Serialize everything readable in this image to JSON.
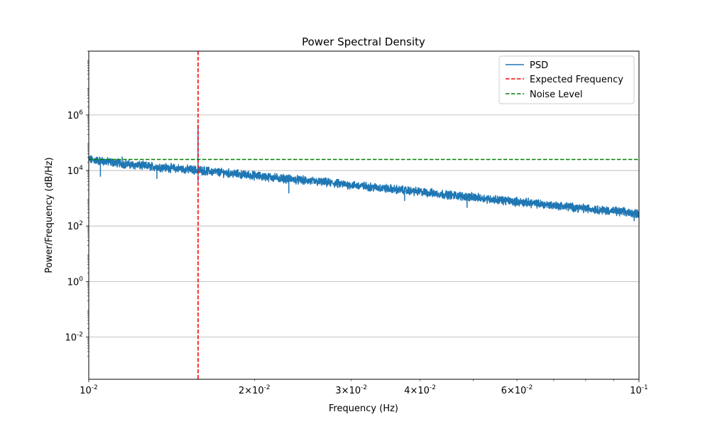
{
  "chart_data": {
    "type": "line",
    "title": "Power Spectral Density",
    "xlabel": "Frequency (Hz)",
    "ylabel": "Power/Frequency (dB/Hz)",
    "xscale": "log",
    "yscale": "log",
    "xlim": [
      0.01,
      0.1
    ],
    "ylim": [
      0.0003,
      200000000
    ],
    "grid": "y-major",
    "legend_position": "top-right",
    "x_major_ticks": [
      {
        "value": 0.01,
        "mantissa": "",
        "exponent": "-2"
      },
      {
        "value": 0.1,
        "mantissa": "",
        "exponent": "-1"
      }
    ],
    "x_minor_ticks": [
      {
        "value": 0.02,
        "mantissa": "2",
        "exponent": "-2"
      },
      {
        "value": 0.03,
        "mantissa": "3",
        "exponent": "-2"
      },
      {
        "value": 0.04,
        "mantissa": "4",
        "exponent": "-2"
      },
      {
        "value": 0.06,
        "mantissa": "6",
        "exponent": "-2"
      }
    ],
    "x_minor_ticks_unlabeled": [
      0.05,
      0.07,
      0.08,
      0.09
    ],
    "y_ticks": [
      {
        "value": 0.01,
        "exponent": "-2"
      },
      {
        "value": 1,
        "exponent": "0"
      },
      {
        "value": 100,
        "exponent": "2"
      },
      {
        "value": 10000,
        "exponent": "4"
      },
      {
        "value": 1000000,
        "exponent": "6"
      }
    ],
    "series": [
      {
        "name": "PSD",
        "color": "#1f77b4",
        "style": "solid",
        "trend": {
          "x": [
            0.01,
            0.012,
            0.016,
            0.02,
            0.03,
            0.04,
            0.06,
            0.08,
            0.1
          ],
          "y": [
            25000,
            16000,
            10000,
            6500,
            3000,
            1700,
            750,
            430,
            280
          ]
        },
        "noise_band_decades": 0.12,
        "dips": [
          {
            "x": 0.0105,
            "y": 6000
          },
          {
            "x": 0.0133,
            "y": 5000
          },
          {
            "x": 0.0158,
            "y": 4000
          },
          {
            "x": 0.0231,
            "y": 1500
          },
          {
            "x": 0.0375,
            "y": 800
          },
          {
            "x": 0.0487,
            "y": 450
          },
          {
            "x": 0.098,
            "y": 150
          }
        ],
        "peaks": [
          {
            "x": 0.0158,
            "y": 450000
          },
          {
            "x": 0.0115,
            "y": 32000
          }
        ]
      },
      {
        "name": "Expected Frequency",
        "color": "#ff0000",
        "style": "dashed",
        "orientation": "vertical",
        "x": 0.0158
      },
      {
        "name": "Noise Level",
        "color": "#008000",
        "style": "dashed",
        "orientation": "horizontal",
        "y": 25000
      }
    ]
  }
}
